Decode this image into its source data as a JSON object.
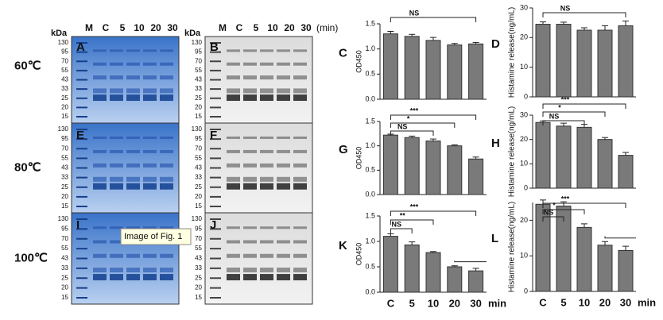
{
  "gels": {
    "unit": "(min)",
    "kda": "kDa",
    "lanes": [
      "M",
      "C",
      "5",
      "10",
      "20",
      "30"
    ],
    "rows": [
      {
        "temperature": "60℃",
        "panels": [
          "A",
          "B"
        ],
        "markers": [
          [
            "130",
            "95",
            "70",
            "55",
            "43",
            "33",
            "25",
            "20",
            "15"
          ],
          [
            "130",
            "95",
            "70",
            "55",
            "43",
            "33",
            "25",
            "20",
            "15"
          ]
        ]
      },
      {
        "temperature": "80℃",
        "panels": [
          "E",
          "F"
        ],
        "markers": [
          [
            "130",
            "95",
            "70",
            "55",
            "43",
            "33",
            "25",
            "20",
            "15"
          ],
          [
            "130",
            "95",
            "70",
            "55",
            "43",
            "33",
            "25",
            "20",
            "15"
          ]
        ]
      },
      {
        "temperature": "100℃",
        "panels": [
          "I",
          "J"
        ],
        "markers": [
          [
            "130",
            "95",
            "70",
            "55",
            "43",
            "33",
            "25",
            "20",
            "15"
          ],
          [
            "130",
            "95",
            "70",
            "55",
            "43",
            "33",
            "25",
            "20",
            "15"
          ]
        ]
      }
    ],
    "tooltip": "Image of Fig. 1"
  },
  "chart_data": [
    {
      "type": "bar",
      "panel": "C",
      "y_label": "OD450",
      "categories": [
        null,
        null,
        null,
        null,
        null
      ],
      "values": [
        1.3,
        1.25,
        1.17,
        1.08,
        1.1
      ],
      "errors": [
        0.05,
        0.04,
        0.06,
        0.03,
        0.03
      ],
      "color": "#7a7a7a",
      "ylim": [
        0,
        1.5
      ],
      "yticks": [
        {
          "value": 0,
          "label": "0.0"
        },
        0.5,
        {
          "value": 1,
          "label": "1.0"
        },
        1.5
      ],
      "annotations": [
        "NS"
      ]
    },
    {
      "type": "bar",
      "panel": "D",
      "y_label": "Histamine release(ng/mL)",
      "categories": [
        null,
        null,
        null,
        null,
        null
      ],
      "values": [
        24.5,
        24.5,
        22.5,
        22.5,
        24
      ],
      "errors": [
        0.8,
        0.7,
        0.8,
        1.5,
        1.6
      ],
      "color": "#7a7a7a",
      "ylim": [
        0,
        30
      ],
      "yticks": [
        0,
        10,
        20,
        30
      ],
      "annotations": [
        "NS"
      ]
    },
    {
      "type": "bar",
      "panel": "G",
      "y_label": "OD450",
      "categories": [
        null,
        null,
        null,
        null,
        null
      ],
      "values": [
        1.22,
        1.17,
        1.1,
        1.0,
        0.73
      ],
      "errors": [
        0.02,
        0.03,
        0.04,
        0.02,
        0.04
      ],
      "color": "#7a7a7a",
      "ylim": [
        0,
        1.5
      ],
      "yticks": [
        {
          "value": 0,
          "label": "0.0"
        },
        0.5,
        {
          "value": 1,
          "label": "1.0"
        },
        1.5
      ],
      "annotations": [
        "NS",
        "*",
        "***"
      ]
    },
    {
      "type": "bar",
      "panel": "H",
      "y_label": "Histamine release(ng/mL)",
      "categories": [
        null,
        null,
        null,
        null,
        null
      ],
      "values": [
        27,
        25.5,
        25,
        20,
        13.5
      ],
      "errors": [
        0.6,
        1.2,
        1.2,
        0.8,
        1.2
      ],
      "color": "#7a7a7a",
      "ylim": [
        0,
        30
      ],
      "yticks": [
        0,
        10,
        20,
        30
      ],
      "annotations": [
        "NS",
        "*",
        "***"
      ]
    },
    {
      "type": "bar",
      "panel": "K",
      "y_label": "OD450",
      "x_label": "min",
      "categories": [
        "C",
        "5",
        "10",
        "20",
        "30"
      ],
      "values": [
        1.1,
        0.93,
        0.78,
        0.5,
        0.42
      ],
      "errors": [
        0.05,
        0.06,
        0.02,
        0.02,
        0.05
      ],
      "color": "#7a7a7a",
      "ylim": [
        0,
        1.5
      ],
      "yticks": [
        {
          "value": 0,
          "label": "0.0"
        },
        0.5,
        {
          "value": 1,
          "label": "1.0"
        },
        1.5
      ],
      "annotations": [
        "NS",
        "**",
        "***"
      ]
    },
    {
      "type": "bar",
      "panel": "L",
      "y_label": "Histamine release(ng/mL)",
      "x_label": "min",
      "categories": [
        "C",
        "5",
        "10",
        "20",
        "30"
      ],
      "values": [
        24.5,
        24,
        18,
        13,
        11.5
      ],
      "errors": [
        1.2,
        1.2,
        1,
        1,
        1.2
      ],
      "color": "#7a7a7a",
      "ylim": [
        0,
        25
      ],
      "yticks": [
        0,
        10,
        20
      ],
      "annotations": [
        "NS",
        "*",
        "***"
      ]
    }
  ]
}
